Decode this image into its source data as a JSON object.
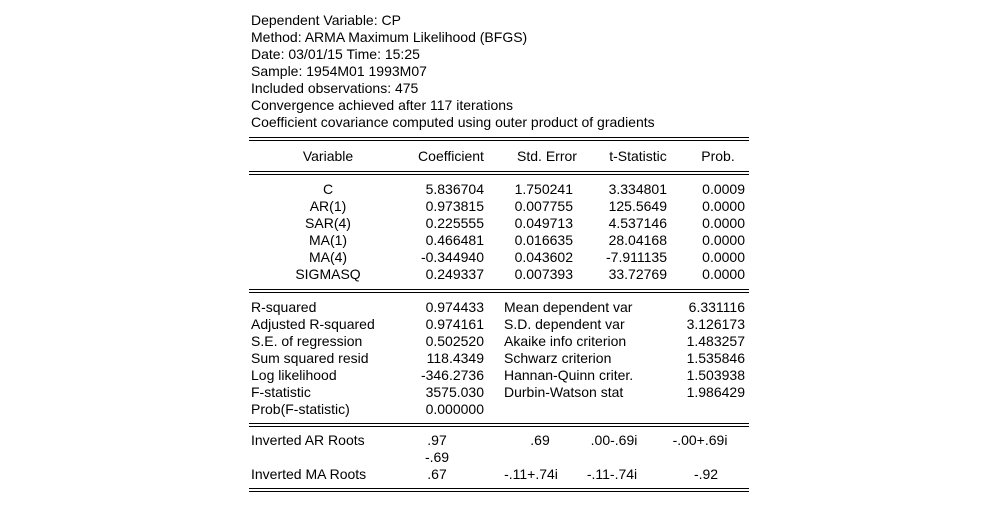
{
  "header": [
    "Dependent Variable: CP",
    "Method: ARMA Maximum Likelihood (BFGS)",
    "Date: 03/01/15   Time: 15:25",
    "Sample: 1954M01 1993M07",
    "Included observations: 475",
    "Convergence achieved after 117 iterations",
    "Coefficient covariance computed using outer product of gradients"
  ],
  "columns": [
    "Variable",
    "Coefficient",
    "Std. Error",
    "t-Statistic",
    "Prob."
  ],
  "coefficients": [
    {
      "variable": "C",
      "coefficient": "5.836704",
      "std_error": "1.750241",
      "t_statistic": "3.334801",
      "prob": "0.0009"
    },
    {
      "variable": "AR(1)",
      "coefficient": "0.973815",
      "std_error": "0.007755",
      "t_statistic": "125.5649",
      "prob": "0.0000"
    },
    {
      "variable": "SAR(4)",
      "coefficient": "0.225555",
      "std_error": "0.049713",
      "t_statistic": "4.537146",
      "prob": "0.0000"
    },
    {
      "variable": "MA(1)",
      "coefficient": "0.466481",
      "std_error": "0.016635",
      "t_statistic": "28.04168",
      "prob": "0.0000"
    },
    {
      "variable": "MA(4)",
      "coefficient": "-0.344940",
      "std_error": "0.043602",
      "t_statistic": "-7.911135",
      "prob": "0.0000"
    },
    {
      "variable": "SIGMASQ",
      "coefficient": "0.249337",
      "std_error": "0.007393",
      "t_statistic": "33.72769",
      "prob": "0.0000"
    }
  ],
  "statistics": [
    {
      "label": "R-squared",
      "value": "0.974433",
      "label2": "Mean dependent var",
      "value2": "6.331116"
    },
    {
      "label": "Adjusted R-squared",
      "value": "0.974161",
      "label2": "S.D. dependent var",
      "value2": "3.126173"
    },
    {
      "label": "S.E. of regression",
      "value": "0.502520",
      "label2": "Akaike info criterion",
      "value2": "1.483257"
    },
    {
      "label": "Sum squared resid",
      "value": "118.4349",
      "label2": "Schwarz criterion",
      "value2": "1.535846"
    },
    {
      "label": "Log likelihood",
      "value": "-346.2736",
      "label2": "Hannan-Quinn criter.",
      "value2": "1.503938"
    },
    {
      "label": "F-statistic",
      "value": "3575.030",
      "label2": "Durbin-Watson stat",
      "value2": "1.986429"
    },
    {
      "label": "Prob(F-statistic)",
      "value": "0.000000",
      "label2": "",
      "value2": ""
    }
  ],
  "roots": {
    "ar_label": "Inverted AR Roots",
    "ar_values": [
      ".97",
      ".69",
      ".00-.69i",
      "-.00+.69i"
    ],
    "ar_extra": "-.69",
    "ma_label": "Inverted MA Roots",
    "ma_values": [
      ".67",
      "-.11+.74i",
      "-.11-.74i",
      "-.92"
    ]
  }
}
